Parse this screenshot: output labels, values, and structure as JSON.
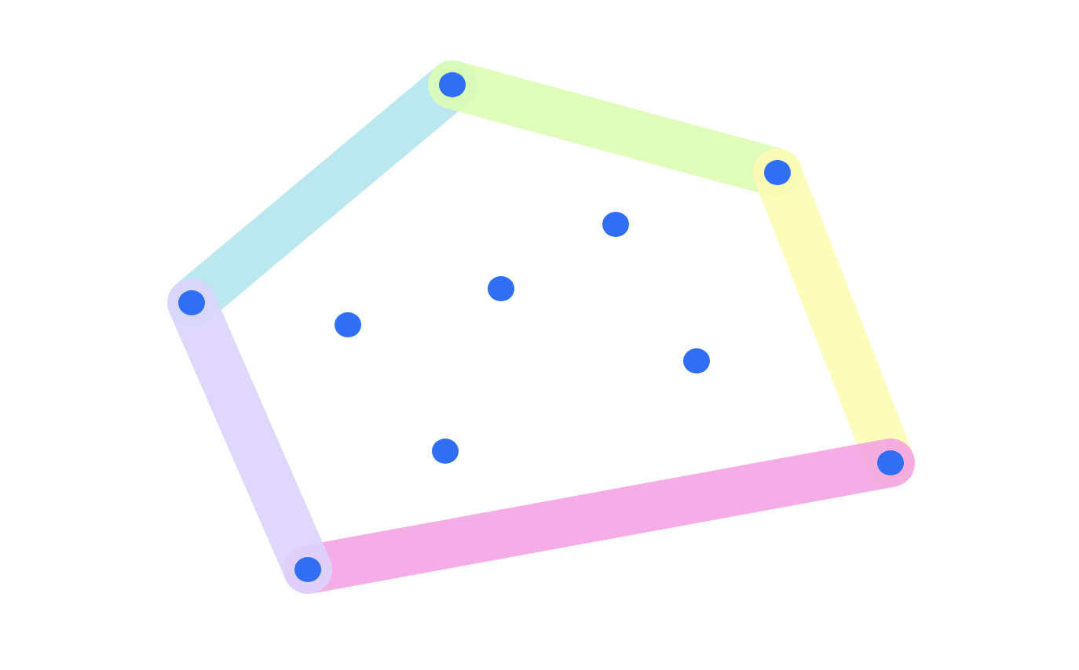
{
  "diagram": {
    "background": "#ffffff",
    "point_color": "#2f6ef5",
    "points": [
      {
        "id": "p1",
        "hull": true
      },
      {
        "id": "p2",
        "hull": true
      },
      {
        "id": "p3",
        "hull": true
      },
      {
        "id": "p4",
        "hull": true
      },
      {
        "id": "p5",
        "hull": true
      },
      {
        "id": "p6",
        "hull": false
      },
      {
        "id": "p7",
        "hull": false
      },
      {
        "id": "p8",
        "hull": false
      },
      {
        "id": "p9",
        "hull": false
      },
      {
        "id": "p10",
        "hull": false
      }
    ],
    "hull_edges": [
      {
        "from": "p1",
        "to": "p2",
        "color": "#b4e4ec"
      },
      {
        "from": "p2",
        "to": "p3",
        "color": "#dcfcb4"
      },
      {
        "from": "p3",
        "to": "p4",
        "color": "#fcfcb4"
      },
      {
        "from": "p4",
        "to": "p5",
        "color": "#f4a4e4"
      },
      {
        "from": "p5",
        "to": "p1",
        "color": "#dcd4fc"
      }
    ]
  }
}
